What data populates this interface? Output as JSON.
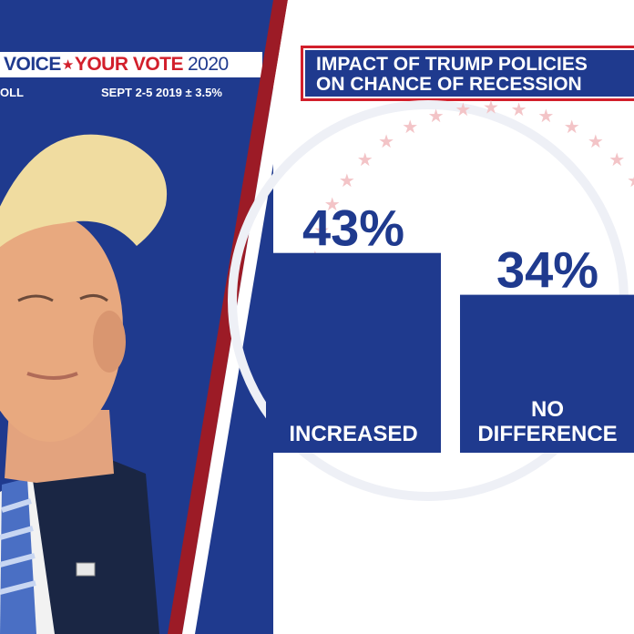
{
  "header": {
    "brand_part1": "VOICE",
    "brand_part2": "YOUR VOTE",
    "brand_part3": "2020",
    "poll_label": "OLL",
    "poll_meta": "SEPT 2-5 2019 ± 3.5%"
  },
  "colors": {
    "navy": "#1f3a8e",
    "red": "#d21f2b",
    "white": "#ffffff"
  },
  "chart_data": {
    "type": "bar",
    "title_line1": "IMPACT OF TRUMP POLICIES",
    "title_line2": "ON CHANCE OF RECESSION",
    "categories": [
      "INCREASED",
      "NO DIFFERENCE"
    ],
    "category_lines": [
      [
        "INCREASED"
      ],
      [
        "NO",
        "DIFFERENCE"
      ]
    ],
    "values": [
      43,
      34
    ],
    "value_labels": [
      "43%",
      "34%"
    ],
    "ylim": [
      0,
      50
    ],
    "grid": false,
    "legend": "none"
  }
}
